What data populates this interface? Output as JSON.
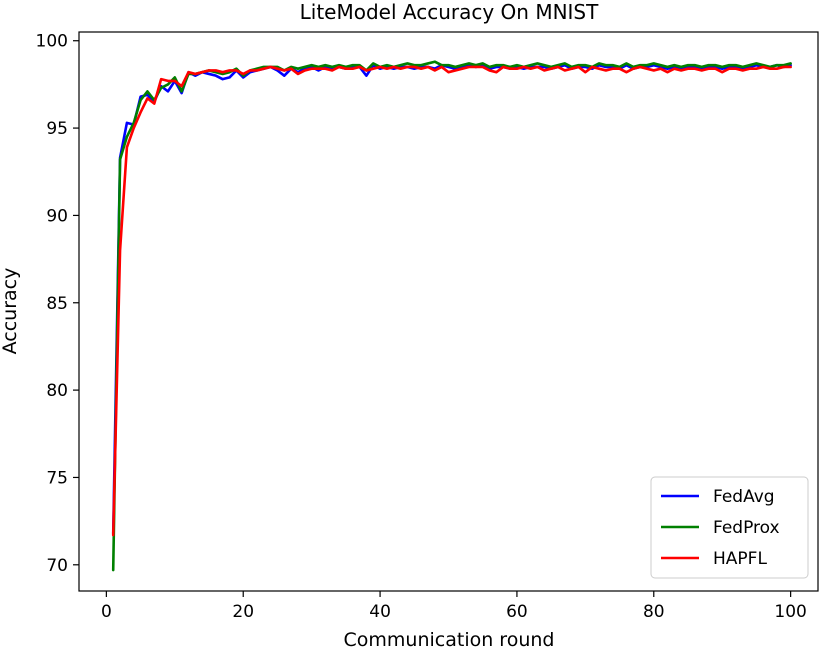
{
  "chart_data": {
    "type": "line",
    "title": "LiteModel Accuracy On MNIST",
    "xlabel": "Communication round",
    "ylabel": "Accuracy",
    "xlim": [
      -4.0,
      104.0
    ],
    "ylim": [
      68.5,
      100.5
    ],
    "xticks": [
      0,
      20,
      40,
      60,
      80,
      100
    ],
    "yticks": [
      70,
      75,
      80,
      85,
      90,
      95,
      100
    ],
    "grid": false,
    "legend_position": "lower-right",
    "series": [
      {
        "name": "FedAvg",
        "color": "#0000ff",
        "x": [
          1,
          2,
          3,
          4,
          5,
          6,
          7,
          8,
          9,
          10,
          11,
          12,
          13,
          14,
          15,
          16,
          17,
          18,
          19,
          20,
          21,
          22,
          23,
          24,
          25,
          26,
          27,
          28,
          29,
          30,
          31,
          32,
          33,
          34,
          35,
          36,
          37,
          38,
          39,
          40,
          41,
          42,
          43,
          44,
          45,
          46,
          47,
          48,
          49,
          50,
          51,
          52,
          53,
          54,
          55,
          56,
          57,
          58,
          59,
          60,
          61,
          62,
          63,
          64,
          65,
          66,
          67,
          68,
          69,
          70,
          71,
          72,
          73,
          74,
          75,
          76,
          77,
          78,
          79,
          80,
          81,
          82,
          83,
          84,
          85,
          86,
          87,
          88,
          89,
          90,
          91,
          92,
          93,
          94,
          95,
          96,
          97,
          98,
          99,
          100
        ],
        "y": [
          71.8,
          93.3,
          95.3,
          95.2,
          96.8,
          96.9,
          96.5,
          97.4,
          97.1,
          97.7,
          97.0,
          98.2,
          98.0,
          98.2,
          98.1,
          98.0,
          97.8,
          97.9,
          98.3,
          97.9,
          98.2,
          98.3,
          98.4,
          98.5,
          98.3,
          98.0,
          98.4,
          98.2,
          98.4,
          98.5,
          98.3,
          98.5,
          98.4,
          98.5,
          98.4,
          98.5,
          98.5,
          98.0,
          98.6,
          98.4,
          98.5,
          98.4,
          98.5,
          98.5,
          98.4,
          98.5,
          98.5,
          98.4,
          98.6,
          98.5,
          98.4,
          98.5,
          98.6,
          98.5,
          98.6,
          98.4,
          98.5,
          98.5,
          98.4,
          98.5,
          98.4,
          98.5,
          98.5,
          98.5,
          98.4,
          98.5,
          98.6,
          98.4,
          98.5,
          98.5,
          98.4,
          98.6,
          98.5,
          98.5,
          98.4,
          98.6,
          98.4,
          98.5,
          98.5,
          98.6,
          98.5,
          98.4,
          98.5,
          98.4,
          98.5,
          98.5,
          98.4,
          98.5,
          98.5,
          98.4,
          98.5,
          98.5,
          98.4,
          98.5,
          98.6,
          98.5,
          98.5,
          98.6,
          98.5,
          98.6
        ]
      },
      {
        "name": "FedProx",
        "color": "#008000",
        "x": [
          1,
          2,
          3,
          4,
          5,
          6,
          7,
          8,
          9,
          10,
          11,
          12,
          13,
          14,
          15,
          16,
          17,
          18,
          19,
          20,
          21,
          22,
          23,
          24,
          25,
          26,
          27,
          28,
          29,
          30,
          31,
          32,
          33,
          34,
          35,
          36,
          37,
          38,
          39,
          40,
          41,
          42,
          43,
          44,
          45,
          46,
          47,
          48,
          49,
          50,
          51,
          52,
          53,
          54,
          55,
          56,
          57,
          58,
          59,
          60,
          61,
          62,
          63,
          64,
          65,
          66,
          67,
          68,
          69,
          70,
          71,
          72,
          73,
          74,
          75,
          76,
          77,
          78,
          79,
          80,
          81,
          82,
          83,
          84,
          85,
          86,
          87,
          88,
          89,
          90,
          91,
          92,
          93,
          94,
          95,
          96,
          97,
          98,
          99,
          100
        ],
        "y": [
          69.7,
          93.2,
          94.5,
          95.3,
          96.6,
          97.1,
          96.6,
          97.3,
          97.5,
          97.9,
          97.1,
          98.1,
          98.1,
          98.2,
          98.3,
          98.2,
          98.1,
          98.2,
          98.4,
          98.0,
          98.3,
          98.4,
          98.5,
          98.5,
          98.5,
          98.3,
          98.5,
          98.4,
          98.5,
          98.6,
          98.5,
          98.6,
          98.5,
          98.6,
          98.5,
          98.6,
          98.6,
          98.3,
          98.7,
          98.5,
          98.6,
          98.5,
          98.6,
          98.7,
          98.6,
          98.6,
          98.7,
          98.8,
          98.6,
          98.6,
          98.5,
          98.6,
          98.7,
          98.6,
          98.7,
          98.5,
          98.6,
          98.6,
          98.5,
          98.6,
          98.5,
          98.6,
          98.7,
          98.6,
          98.5,
          98.6,
          98.7,
          98.5,
          98.6,
          98.6,
          98.5,
          98.7,
          98.6,
          98.6,
          98.5,
          98.7,
          98.5,
          98.6,
          98.6,
          98.7,
          98.6,
          98.5,
          98.6,
          98.5,
          98.6,
          98.6,
          98.5,
          98.6,
          98.6,
          98.5,
          98.6,
          98.6,
          98.5,
          98.6,
          98.7,
          98.6,
          98.5,
          98.6,
          98.6,
          98.7
        ]
      },
      {
        "name": "HAPFL",
        "color": "#ff0000",
        "x": [
          1,
          2,
          3,
          4,
          5,
          6,
          7,
          8,
          9,
          10,
          11,
          12,
          13,
          14,
          15,
          16,
          17,
          18,
          19,
          20,
          21,
          22,
          23,
          24,
          25,
          26,
          27,
          28,
          29,
          30,
          31,
          32,
          33,
          34,
          35,
          36,
          37,
          38,
          39,
          40,
          41,
          42,
          43,
          44,
          45,
          46,
          47,
          48,
          49,
          50,
          51,
          52,
          53,
          54,
          55,
          56,
          57,
          58,
          59,
          60,
          61,
          62,
          63,
          64,
          65,
          66,
          67,
          68,
          69,
          70,
          71,
          72,
          73,
          74,
          75,
          76,
          77,
          78,
          79,
          80,
          81,
          82,
          83,
          84,
          85,
          86,
          87,
          88,
          89,
          90,
          91,
          92,
          93,
          94,
          95,
          96,
          97,
          98,
          99,
          100
        ],
        "y": [
          71.7,
          88.0,
          93.9,
          95.0,
          95.9,
          96.7,
          96.4,
          97.8,
          97.7,
          97.7,
          97.4,
          98.2,
          98.1,
          98.2,
          98.3,
          98.3,
          98.2,
          98.3,
          98.3,
          98.1,
          98.3,
          98.3,
          98.4,
          98.5,
          98.4,
          98.3,
          98.4,
          98.1,
          98.3,
          98.4,
          98.4,
          98.4,
          98.3,
          98.5,
          98.4,
          98.4,
          98.5,
          98.3,
          98.4,
          98.5,
          98.4,
          98.5,
          98.4,
          98.5,
          98.5,
          98.4,
          98.5,
          98.3,
          98.5,
          98.2,
          98.3,
          98.4,
          98.5,
          98.5,
          98.5,
          98.3,
          98.2,
          98.5,
          98.4,
          98.4,
          98.5,
          98.4,
          98.5,
          98.3,
          98.4,
          98.5,
          98.3,
          98.4,
          98.5,
          98.2,
          98.5,
          98.4,
          98.3,
          98.4,
          98.4,
          98.2,
          98.4,
          98.5,
          98.4,
          98.3,
          98.4,
          98.2,
          98.4,
          98.3,
          98.4,
          98.4,
          98.3,
          98.4,
          98.4,
          98.2,
          98.4,
          98.4,
          98.3,
          98.4,
          98.4,
          98.5,
          98.4,
          98.4,
          98.5,
          98.5
        ]
      }
    ]
  }
}
